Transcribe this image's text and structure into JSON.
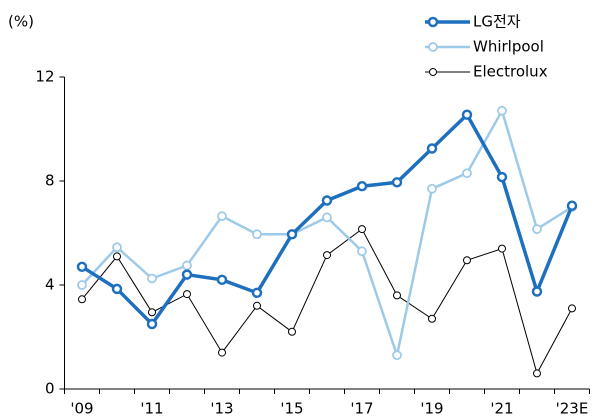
{
  "chart_data": {
    "type": "line",
    "y_label": "(%)",
    "categories": [
      "'09",
      null,
      "'11",
      null,
      "'13",
      null,
      "'15",
      null,
      "'17",
      null,
      "'19",
      null,
      "'21",
      null,
      "'23E"
    ],
    "series": [
      {
        "name": "LG전자",
        "color": "#1f6fbf",
        "values": [
          4.7,
          3.85,
          2.5,
          4.4,
          4.2,
          3.7,
          5.95,
          7.25,
          7.8,
          7.95,
          9.25,
          10.55,
          8.15,
          3.75,
          7.05
        ]
      },
      {
        "name": "Whirlpool",
        "color": "#9ecae9",
        "values": [
          4.0,
          5.45,
          4.25,
          4.75,
          6.65,
          5.95,
          5.95,
          6.6,
          5.3,
          1.3,
          7.7,
          8.3,
          10.7,
          6.15,
          7.0
        ]
      },
      {
        "name": "Electrolux",
        "color": "#000000",
        "values": [
          3.45,
          5.1,
          2.95,
          3.65,
          1.4,
          3.2,
          2.2,
          5.15,
          6.15,
          3.6,
          2.7,
          4.95,
          5.4,
          0.6,
          3.1
        ]
      }
    ],
    "ylim": [
      0,
      12
    ],
    "yticks": [
      0,
      4,
      8,
      12
    ],
    "legend": "top-right",
    "grid": false
  }
}
